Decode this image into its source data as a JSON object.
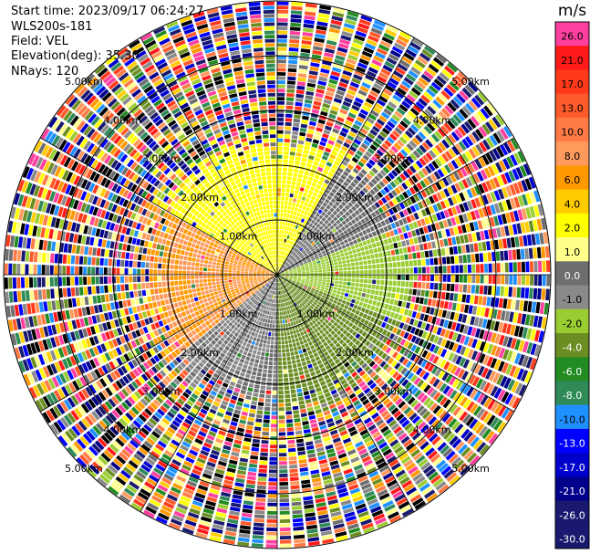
{
  "header": {
    "start_time": "Start time: 2023/09/17 06:24:27",
    "instrument": "WLS200s-181",
    "field": "Field: VEL",
    "elevation": "Elevation(deg): 35.30",
    "nrays": "NRays: 120"
  },
  "colorbar": {
    "unit": "m/s",
    "ticks": [
      "26.0",
      "21.0",
      "17.0",
      "13.0",
      "10.0",
      "8.0",
      "6.0",
      "4.0",
      "2.0",
      "1.0",
      "0.0",
      "-1.0",
      "-2.0",
      "-4.0",
      "-6.0",
      "-8.0",
      "-10.0",
      "-13.0",
      "-17.0",
      "-21.0",
      "-26.0",
      "-30.0"
    ],
    "colors": [
      "#ff3f9f",
      "#ff1a1a",
      "#ff3a1a",
      "#ff5a2a",
      "#ff7a44",
      "#ff9a5c",
      "#ff9900",
      "#ffcc00",
      "#ffff00",
      "#ffff8a",
      "#6e6e6e",
      "#8a8a8a",
      "#9acd32",
      "#6b8e23",
      "#228b22",
      "#2e8b57",
      "#1e90ff",
      "#0000ff",
      "#0000cd",
      "#00008b",
      "#191970",
      "#191970"
    ]
  },
  "ring_labels": [
    "1.00km",
    "2.00km",
    "3.00km",
    "4.00km",
    "5.00km"
  ],
  "chart_data": {
    "type": "heatmap",
    "title": "",
    "field": "VEL",
    "unit": "m/s",
    "nrays": 120,
    "elevation_deg": 35.3,
    "range_rings_km": [
      1,
      2,
      3,
      4,
      5
    ],
    "max_range_km": 5.0,
    "sectors": [
      {
        "azimuth_deg": [
          300,
          30
        ],
        "description": "yellow",
        "velocity_ms": [
          1.0,
          2.0
        ]
      },
      {
        "azimuth_deg": [
          230,
          300
        ],
        "description": "orange",
        "velocity_ms": [
          4.0,
          8.0
        ]
      },
      {
        "azimuth_deg": [
          30,
          70
        ],
        "description": "gray",
        "velocity_ms": [
          -1.0,
          0.0
        ]
      },
      {
        "azimuth_deg": [
          70,
          110
        ],
        "description": "olive",
        "velocity_ms": [
          -4.0,
          -2.0
        ]
      },
      {
        "azimuth_deg": [
          110,
          180
        ],
        "description": "green",
        "velocity_ms": [
          -6.0,
          -4.0
        ]
      },
      {
        "azimuth_deg": [
          180,
          230
        ],
        "description": "light green / gray",
        "velocity_ms": [
          -2.0,
          0.0
        ]
      }
    ],
    "clean_range_km": [
      0.0,
      2.4
    ],
    "noise_range_km": [
      2.4,
      5.0
    ]
  }
}
